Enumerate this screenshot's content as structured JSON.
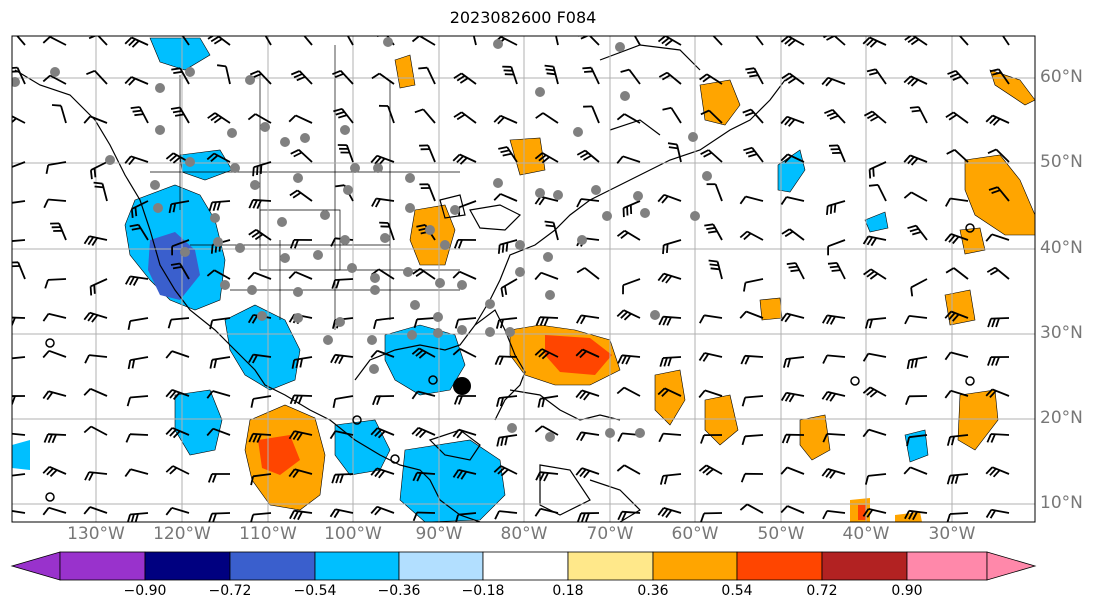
{
  "title": "2023082600 F084",
  "lon_labels": [
    "130°W",
    "120°W",
    "110°W",
    "100°W",
    "90°W",
    "80°W",
    "70°W",
    "60°W",
    "50°W",
    "40°W",
    "30°W"
  ],
  "lat_labels": [
    "60°N",
    "50°N",
    "40°N",
    "30°N",
    "20°N",
    "10°N"
  ],
  "colorbar": {
    "ticks": [
      "−0.90",
      "−0.72",
      "−0.54",
      "−0.36",
      "−0.18",
      "0.18",
      "0.36",
      "0.54",
      "0.72",
      "0.90"
    ],
    "colors": [
      "#9932cc",
      "#000080",
      "#3a5fcd",
      "#00bfff",
      "#b2dfff",
      "#ffffff",
      "#ffe88a",
      "#ffa500",
      "#ff4500",
      "#b22222",
      "#ff88aa"
    ]
  },
  "colors": {
    "grid": "#b0b0b0",
    "land": "#000000",
    "marker": "#808080"
  }
}
